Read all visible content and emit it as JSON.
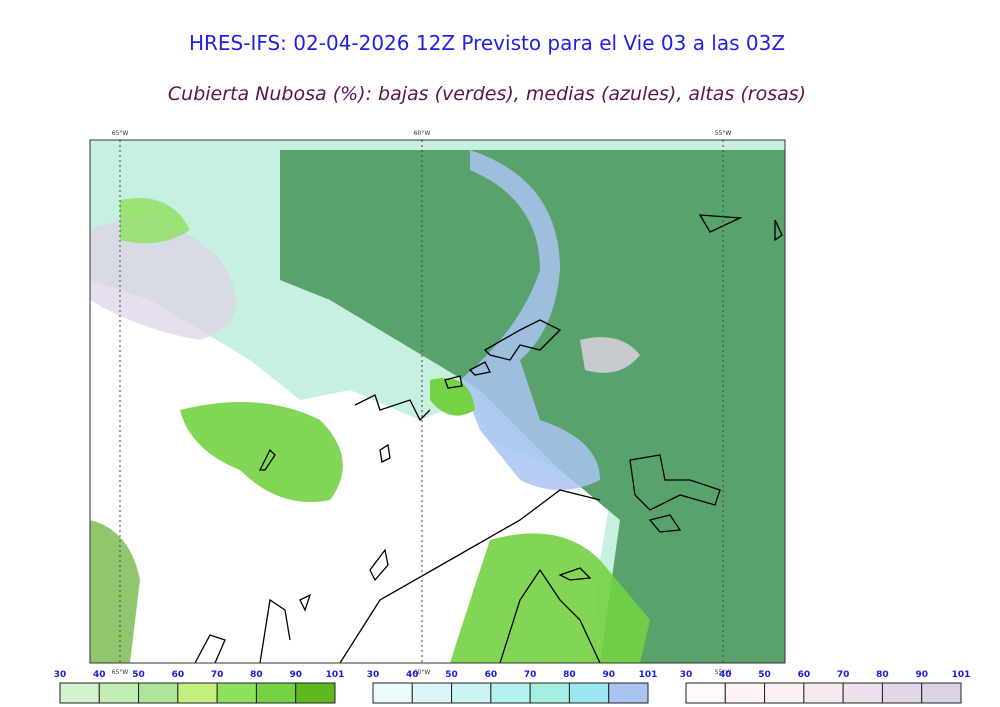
{
  "header": {
    "title": "HRES-IFS: 02-04-2026 12Z Previsto para el Vie 03 a las 03Z",
    "subtitle": "Cubierta Nubosa (%): bajas (verdes), medias (azules), altas (rosas)"
  },
  "map": {
    "longitudes": [
      "65°W",
      "60°W",
      "55°W"
    ]
  },
  "legends": [
    {
      "ticks": [
        30,
        40,
        50,
        60,
        70,
        80,
        90,
        101
      ],
      "colors": [
        "#d6f1d0",
        "#c2edb4",
        "#aee59a",
        "#c6ee7e",
        "#8fe05c",
        "#74d244",
        "#5eb820"
      ]
    },
    {
      "ticks": [
        30,
        40,
        50,
        60,
        70,
        80,
        90,
        101
      ],
      "colors": [
        "#eafbfb",
        "#dcf5f8",
        "#cbf5f5",
        "#b4f1f1",
        "#a4efe2",
        "#9ae7f0",
        "#a9c4f1"
      ]
    },
    {
      "ticks": [
        30,
        40,
        50,
        60,
        70,
        80,
        90,
        101
      ],
      "colors": [
        "#fffafb",
        "#fff2f5",
        "#fdf0f5",
        "#f8e9f1",
        "#eee1ed",
        "#e3d6e9",
        "#ddd1e6"
      ]
    }
  ]
}
